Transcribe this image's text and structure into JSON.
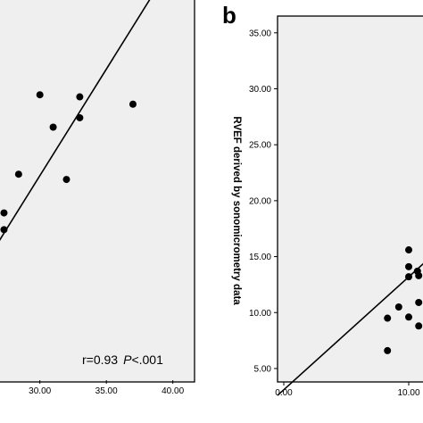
{
  "chart_data": [
    {
      "type": "scatter",
      "panel": "",
      "x_ticks": [
        "30.00",
        "35.00",
        "40.00"
      ],
      "x_tick_values": [
        30,
        35,
        40
      ],
      "xlim": [
        27.0,
        41.5
      ],
      "ylim": [
        0,
        35
      ],
      "points": [
        {
          "x": 27.3,
          "y": 16.0
        },
        {
          "x": 27.3,
          "y": 14.4
        },
        {
          "x": 28.4,
          "y": 19.7
        },
        {
          "x": 30.0,
          "y": 27.3
        },
        {
          "x": 31.0,
          "y": 24.2
        },
        {
          "x": 32.0,
          "y": 19.2
        },
        {
          "x": 33.0,
          "y": 27.1
        },
        {
          "x": 33.0,
          "y": 25.1
        },
        {
          "x": 37.0,
          "y": 26.4
        }
      ],
      "fit_line": [
        {
          "x": 23.0,
          "y": 5.3
        },
        {
          "x": 41.5,
          "y": 43.0
        }
      ],
      "annotation": {
        "r_text": "r=0.93",
        "p_label": "P",
        "p_text": "<.001"
      }
    },
    {
      "type": "scatter",
      "panel": "b",
      "ylabel": "RVEF derived by sonomicrometry data",
      "x_ticks": [
        "0.00",
        "10.00"
      ],
      "x_tick_values": [
        0,
        10
      ],
      "y_ticks": [
        "5.00",
        "10.00",
        "15.00",
        "20.00",
        "25.00",
        "30.00",
        "35.00"
      ],
      "y_tick_values": [
        5,
        10,
        15,
        20,
        25,
        30,
        35
      ],
      "xlim": [
        -0.5,
        11.5
      ],
      "ylim": [
        3.8,
        36.5
      ],
      "points": [
        {
          "x": 8.3,
          "y": 6.6
        },
        {
          "x": 8.3,
          "y": 9.5
        },
        {
          "x": 9.2,
          "y": 10.5
        },
        {
          "x": 10.0,
          "y": 15.6
        },
        {
          "x": 10.0,
          "y": 14.1
        },
        {
          "x": 10.0,
          "y": 13.2
        },
        {
          "x": 10.0,
          "y": 9.6
        },
        {
          "x": 10.7,
          "y": 13.7
        },
        {
          "x": 10.8,
          "y": 13.3
        },
        {
          "x": 10.8,
          "y": 10.9
        },
        {
          "x": 10.8,
          "y": 8.8
        }
      ],
      "fit_line": [
        {
          "x": -0.5,
          "y": 2.6
        },
        {
          "x": 11.5,
          "y": 14.7
        }
      ]
    }
  ]
}
